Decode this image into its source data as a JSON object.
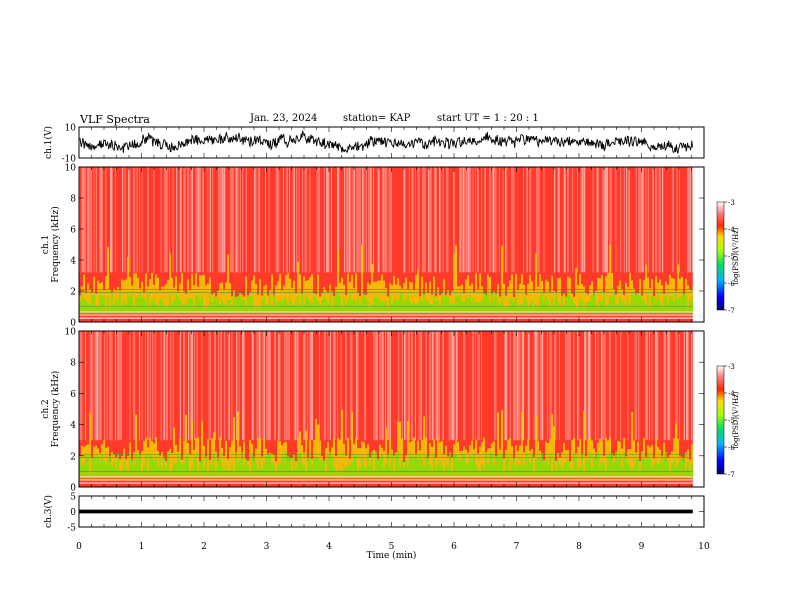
{
  "header": {
    "title": "VLF Spectra",
    "date": "Jan. 23, 2024",
    "station": "station= KAP",
    "start": "start  UT =  1 : 20 : 1"
  },
  "chart_data": [
    {
      "type": "line",
      "panel": "ch1-waveform",
      "ylabel": "ch.1(V)",
      "ylim": [
        -10,
        10
      ],
      "yticks": [
        "10",
        "-10"
      ],
      "xlim": [
        0,
        10
      ],
      "series_color": "#000000"
    },
    {
      "type": "heatmap",
      "panel": "ch1-spectrogram",
      "ylabel": "ch.1\nFrequency (kHz)",
      "ylim": [
        0,
        10
      ],
      "yticks": [
        "0",
        "2",
        "4",
        "6",
        "8",
        "10"
      ],
      "xlim": [
        0,
        10
      ],
      "colorbar": {
        "label": "log(PSD)(V²/Hz)",
        "range": [
          -7,
          -3
        ],
        "ticks": [
          "-3",
          "-4",
          "-5",
          "-6",
          "-7"
        ]
      }
    },
    {
      "type": "heatmap",
      "panel": "ch2-spectrogram",
      "ylabel": "ch.2\nFrequency (kHz)",
      "ylim": [
        0,
        10
      ],
      "yticks": [
        "0",
        "2",
        "4",
        "6",
        "8",
        "10"
      ],
      "xlim": [
        0,
        10
      ],
      "colorbar": {
        "label": "log(PSD)(V²/Hz)",
        "range": [
          -7,
          -3
        ],
        "ticks": [
          "-3",
          "-4",
          "-5",
          "-6",
          "-7"
        ]
      }
    },
    {
      "type": "line",
      "panel": "ch3-waveform",
      "ylabel": "ch.3(V)",
      "ylim": [
        -5,
        5
      ],
      "yticks": [
        "5",
        "0",
        "-5"
      ],
      "xlim": [
        0,
        10
      ],
      "xlabel": "Time (min)",
      "xticks": [
        "0",
        "1",
        "2",
        "3",
        "4",
        "5",
        "6",
        "7",
        "8",
        "9",
        "10"
      ]
    }
  ]
}
